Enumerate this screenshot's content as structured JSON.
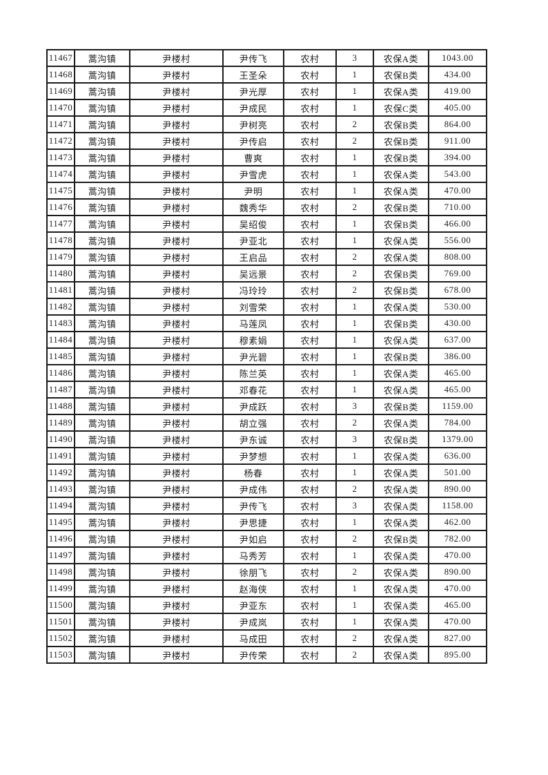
{
  "page": {
    "background_color": "#ffffff",
    "text_color": "#1f1f1f",
    "border_color": "#1b1b1b"
  },
  "table": {
    "rows": [
      [
        "11467",
        "蒿沟镇",
        "尹楼村",
        "尹传飞",
        "农村",
        "3",
        "农保A类",
        "1043.00"
      ],
      [
        "11468",
        "蒿沟镇",
        "尹楼村",
        "王圣朵",
        "农村",
        "1",
        "农保B类",
        "434.00"
      ],
      [
        "11469",
        "蒿沟镇",
        "尹楼村",
        "尹光厚",
        "农村",
        "1",
        "农保A类",
        "419.00"
      ],
      [
        "11470",
        "蒿沟镇",
        "尹楼村",
        "尹成民",
        "农村",
        "1",
        "农保C类",
        "405.00"
      ],
      [
        "11471",
        "蒿沟镇",
        "尹楼村",
        "尹树亮",
        "农村",
        "2",
        "农保B类",
        "864.00"
      ],
      [
        "11472",
        "蒿沟镇",
        "尹楼村",
        "尹传启",
        "农村",
        "2",
        "农保B类",
        "911.00"
      ],
      [
        "11473",
        "蒿沟镇",
        "尹楼村",
        "曹爽",
        "农村",
        "1",
        "农保B类",
        "394.00"
      ],
      [
        "11474",
        "蒿沟镇",
        "尹楼村",
        "尹雪虎",
        "农村",
        "1",
        "农保A类",
        "543.00"
      ],
      [
        "11475",
        "蒿沟镇",
        "尹楼村",
        "尹明",
        "农村",
        "1",
        "农保A类",
        "470.00"
      ],
      [
        "11476",
        "蒿沟镇",
        "尹楼村",
        "魏秀华",
        "农村",
        "2",
        "农保B类",
        "710.00"
      ],
      [
        "11477",
        "蒿沟镇",
        "尹楼村",
        "吴绍俊",
        "农村",
        "1",
        "农保B类",
        "466.00"
      ],
      [
        "11478",
        "蒿沟镇",
        "尹楼村",
        "尹亚北",
        "农村",
        "1",
        "农保A类",
        "556.00"
      ],
      [
        "11479",
        "蒿沟镇",
        "尹楼村",
        "王启品",
        "农村",
        "2",
        "农保A类",
        "808.00"
      ],
      [
        "11480",
        "蒿沟镇",
        "尹楼村",
        "吴远景",
        "农村",
        "2",
        "农保B类",
        "769.00"
      ],
      [
        "11481",
        "蒿沟镇",
        "尹楼村",
        "冯玲玲",
        "农村",
        "2",
        "农保B类",
        "678.00"
      ],
      [
        "11482",
        "蒿沟镇",
        "尹楼村",
        "刘雪荣",
        "农村",
        "1",
        "农保A类",
        "530.00"
      ],
      [
        "11483",
        "蒿沟镇",
        "尹楼村",
        "马莲凤",
        "农村",
        "1",
        "农保B类",
        "430.00"
      ],
      [
        "11484",
        "蒿沟镇",
        "尹楼村",
        "穆素娟",
        "农村",
        "1",
        "农保A类",
        "637.00"
      ],
      [
        "11485",
        "蒿沟镇",
        "尹楼村",
        "尹光碧",
        "农村",
        "1",
        "农保B类",
        "386.00"
      ],
      [
        "11486",
        "蒿沟镇",
        "尹楼村",
        "陈兰英",
        "农村",
        "1",
        "农保A类",
        "465.00"
      ],
      [
        "11487",
        "蒿沟镇",
        "尹楼村",
        "邓春花",
        "农村",
        "1",
        "农保A类",
        "465.00"
      ],
      [
        "11488",
        "蒿沟镇",
        "尹楼村",
        "尹成跃",
        "农村",
        "3",
        "农保B类",
        "1159.00"
      ],
      [
        "11489",
        "蒿沟镇",
        "尹楼村",
        "胡立强",
        "农村",
        "2",
        "农保A类",
        "784.00"
      ],
      [
        "11490",
        "蒿沟镇",
        "尹楼村",
        "尹东诚",
        "农村",
        "3",
        "农保B类",
        "1379.00"
      ],
      [
        "11491",
        "蒿沟镇",
        "尹楼村",
        "尹梦想",
        "农村",
        "1",
        "农保A类",
        "636.00"
      ],
      [
        "11492",
        "蒿沟镇",
        "尹楼村",
        "杨春",
        "农村",
        "1",
        "农保A类",
        "501.00"
      ],
      [
        "11493",
        "蒿沟镇",
        "尹楼村",
        "尹成伟",
        "农村",
        "2",
        "农保A类",
        "890.00"
      ],
      [
        "11494",
        "蒿沟镇",
        "尹楼村",
        "尹传飞",
        "农村",
        "3",
        "农保A类",
        "1158.00"
      ],
      [
        "11495",
        "蒿沟镇",
        "尹楼村",
        "尹思捷",
        "农村",
        "1",
        "农保A类",
        "462.00"
      ],
      [
        "11496",
        "蒿沟镇",
        "尹楼村",
        "尹如启",
        "农村",
        "2",
        "农保B类",
        "782.00"
      ],
      [
        "11497",
        "蒿沟镇",
        "尹楼村",
        "马秀芳",
        "农村",
        "1",
        "农保A类",
        "470.00"
      ],
      [
        "11498",
        "蒿沟镇",
        "尹楼村",
        "徐朋飞",
        "农村",
        "2",
        "农保A类",
        "890.00"
      ],
      [
        "11499",
        "蒿沟镇",
        "尹楼村",
        "赵海侠",
        "农村",
        "1",
        "农保A类",
        "470.00"
      ],
      [
        "11500",
        "蒿沟镇",
        "尹楼村",
        "尹亚东",
        "农村",
        "1",
        "农保A类",
        "465.00"
      ],
      [
        "11501",
        "蒿沟镇",
        "尹楼村",
        "尹成岚",
        "农村",
        "1",
        "农保A类",
        "470.00"
      ],
      [
        "11502",
        "蒿沟镇",
        "尹楼村",
        "马成田",
        "农村",
        "2",
        "农保A类",
        "827.00"
      ],
      [
        "11503",
        "蒿沟镇",
        "尹楼村",
        "尹传荣",
        "农村",
        "2",
        "农保A类",
        "895.00"
      ]
    ]
  }
}
